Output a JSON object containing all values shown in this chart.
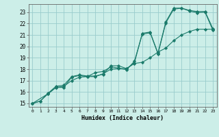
{
  "xlabel": "Humidex (Indice chaleur)",
  "bg_color": "#cceee8",
  "grid_color": "#99cccc",
  "line_color": "#1a7a6a",
  "xlim": [
    -0.5,
    23.5
  ],
  "ylim": [
    14.7,
    23.7
  ],
  "xticks": [
    0,
    1,
    2,
    3,
    4,
    5,
    6,
    7,
    8,
    9,
    10,
    11,
    12,
    13,
    14,
    15,
    16,
    17,
    18,
    19,
    20,
    21,
    22,
    23
  ],
  "yticks": [
    15,
    16,
    17,
    18,
    19,
    20,
    21,
    22,
    23
  ],
  "line1_x": [
    0,
    1,
    2,
    3,
    4,
    5,
    6,
    7,
    8,
    9,
    10,
    11,
    12,
    13,
    14,
    15,
    16,
    17,
    18,
    19,
    20,
    21,
    22,
    23
  ],
  "line1_y": [
    15.0,
    15.2,
    15.9,
    16.5,
    16.6,
    17.35,
    17.5,
    17.4,
    17.4,
    17.55,
    18.3,
    18.3,
    18.05,
    18.55,
    21.15,
    21.25,
    19.4,
    22.15,
    23.35,
    23.35,
    23.15,
    23.05,
    23.05,
    21.55
  ],
  "line2_x": [
    0,
    1,
    2,
    3,
    4,
    5,
    6,
    7,
    8,
    9,
    10,
    11,
    12,
    13,
    14,
    15,
    16,
    17,
    18,
    19,
    20,
    21,
    22,
    23
  ],
  "line2_y": [
    15.0,
    15.2,
    15.85,
    16.4,
    16.4,
    17.3,
    17.45,
    17.35,
    17.7,
    17.8,
    18.2,
    18.1,
    17.95,
    18.7,
    21.05,
    21.2,
    19.35,
    22.05,
    23.25,
    23.35,
    23.1,
    22.95,
    23.0,
    21.4
  ],
  "line3_x": [
    0,
    2,
    3,
    4,
    5,
    6,
    7,
    8,
    9,
    10,
    11,
    12,
    13,
    14,
    15,
    16,
    17,
    18,
    19,
    20,
    21,
    22,
    23
  ],
  "line3_y": [
    15.0,
    15.85,
    16.4,
    16.5,
    17.0,
    17.3,
    17.35,
    17.35,
    17.6,
    18.0,
    18.05,
    18.05,
    18.5,
    18.6,
    19.0,
    19.5,
    19.85,
    20.5,
    21.0,
    21.3,
    21.5,
    21.5,
    21.5
  ]
}
